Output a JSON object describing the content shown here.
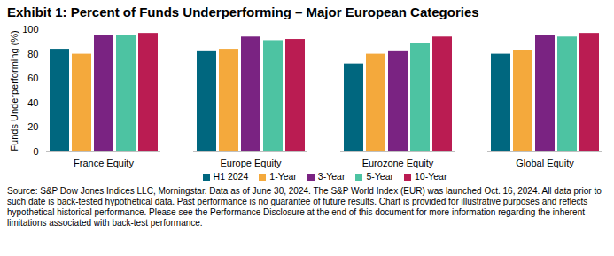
{
  "chart_data": {
    "type": "bar",
    "title": "Exhibit 1: Percent of Funds Underperforming – Major European Categories",
    "ylabel": "Funds Underperforming (%)",
    "categories": [
      "France Equity",
      "Europe Equity",
      "Eurozone Equity",
      "Global Equity"
    ],
    "series": [
      {
        "name": "H1 2024",
        "color": "#00677F",
        "values": [
          84,
          82,
          72,
          80
        ]
      },
      {
        "name": "1-Year",
        "color": "#F4A93C",
        "values": [
          80,
          84,
          80,
          83
        ]
      },
      {
        "name": "3-Year",
        "color": "#7A2382",
        "values": [
          95,
          94,
          82,
          95
        ]
      },
      {
        "name": "5-Year",
        "color": "#4DC3A2",
        "values": [
          95,
          91,
          89,
          94
        ]
      },
      {
        "name": "10-Year",
        "color": "#BA1C52",
        "values": [
          97,
          92,
          94,
          97
        ]
      }
    ],
    "ylim": [
      0,
      100
    ],
    "yticks": [
      0,
      20,
      40,
      60,
      80,
      100
    ],
    "grid": false,
    "legend": "bottom",
    "footnote": "Source: S&P Dow Jones Indices LLC, Morningstar.  Data as of June 30, 2024.  The S&P World Index (EUR) was launched Oct. 16, 2024.  All data prior to such date is back-tested hypothetical data.  Past performance is no guarantee of future results.  Chart is provided for illustrative purposes and reflects hypothetical historical performance.  Please see the Performance Disclosure at the end of this document for more information regarding the inherent limitations associated with back-test performance."
  }
}
